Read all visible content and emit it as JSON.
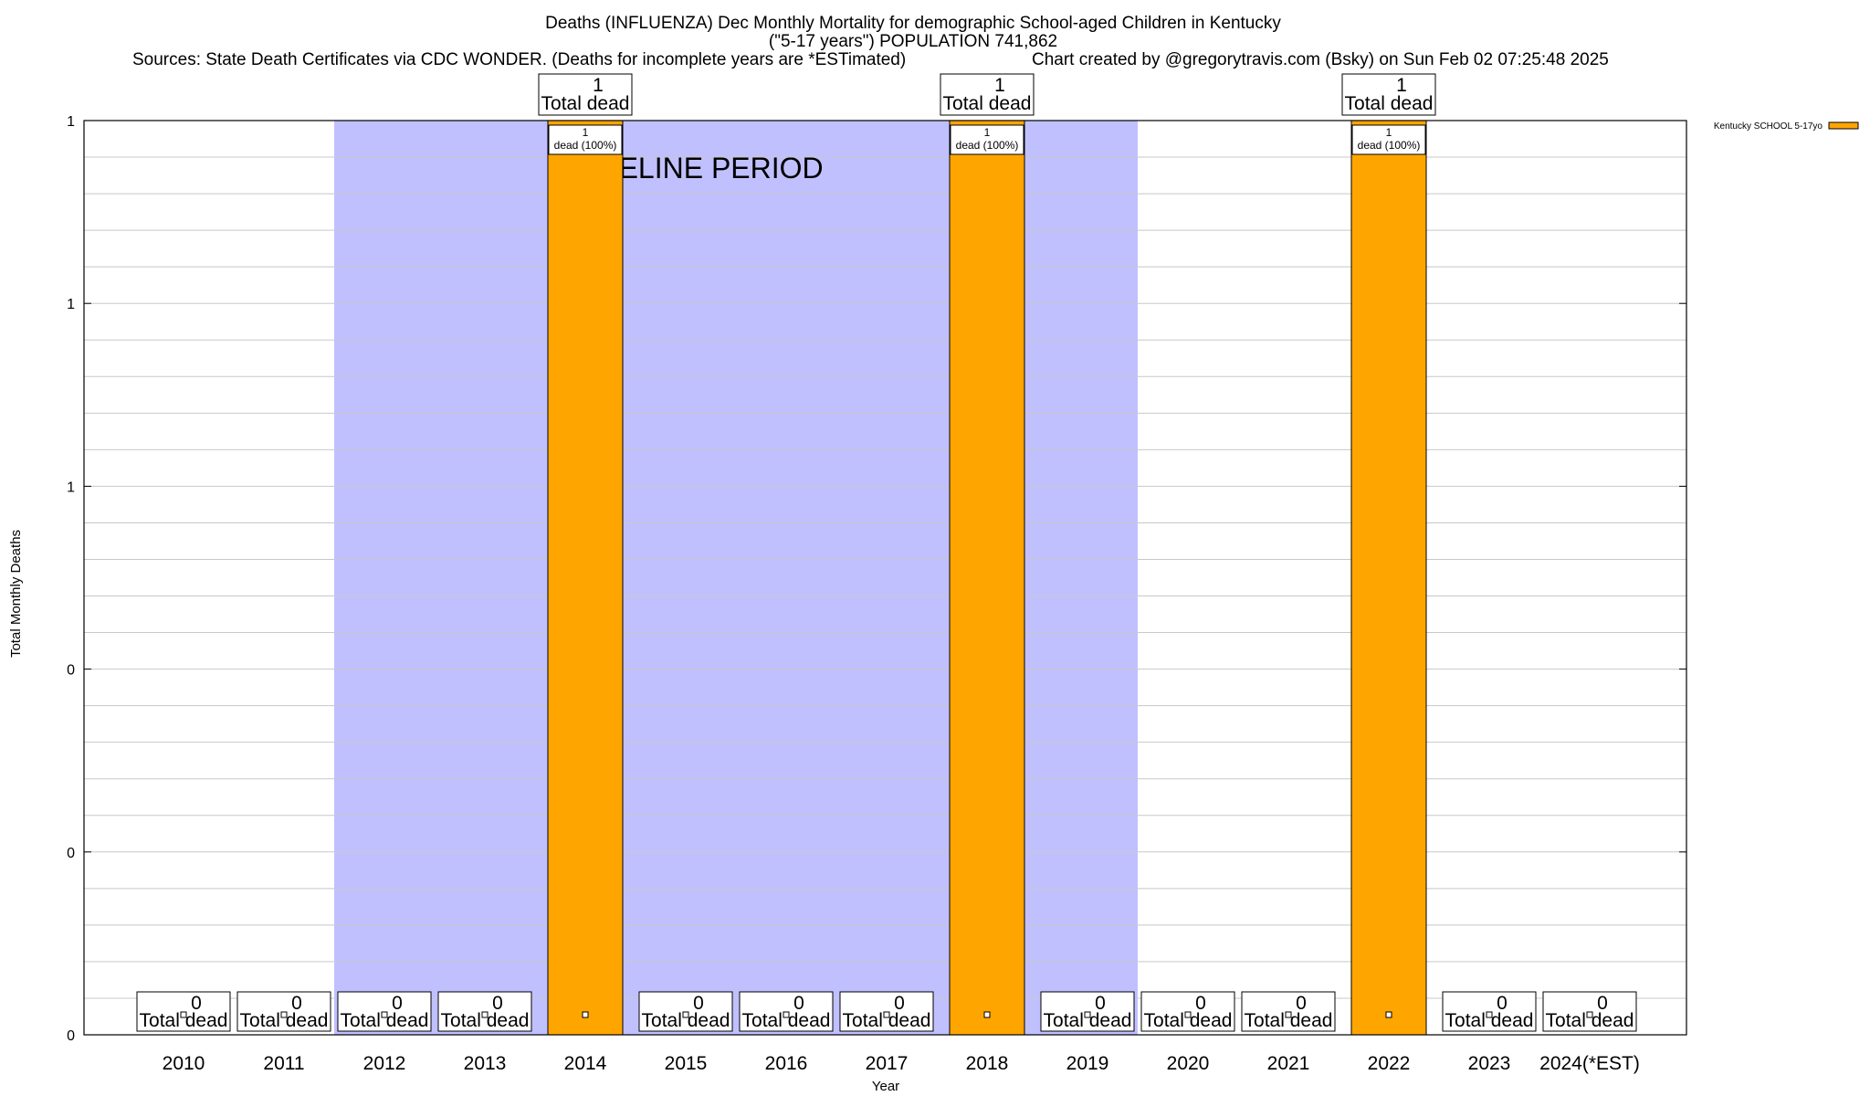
{
  "chart_data": {
    "type": "bar",
    "title_lines": [
      "Deaths (INFLUENZA) Dec Monthly Mortality for demographic School-aged Children in Kentucky",
      "(\"5-17 years\") POPULATION 741,862"
    ],
    "sources": "Sources: State Death Certificates via CDC WONDER. (Deaths for incomplete years are *ESTimated)",
    "credit": "Chart created by @gregorytravis.com (Bsky) on Sun Feb 02 07:25:48 2025",
    "xlabel": "Year",
    "ylabel": "Total Monthly Deaths",
    "ylim": [
      0,
      1
    ],
    "y_ticks": [
      {
        "value": 0,
        "label": "0"
      },
      {
        "value": 0.2,
        "label": "0"
      },
      {
        "value": 0.4,
        "label": "0"
      },
      {
        "value": 0.6,
        "label": "1"
      },
      {
        "value": 0.8,
        "label": "1"
      },
      {
        "value": 1.0,
        "label": "1"
      }
    ],
    "categories": [
      "2010",
      "2011",
      "2012",
      "2013",
      "2014",
      "2015",
      "2016",
      "2017",
      "2018",
      "2019",
      "2020",
      "2021",
      "2022",
      "2023",
      "2024(*EST)"
    ],
    "series": [
      {
        "name": "Kentucky SCHOOL 5-17yo",
        "color": "#ffa500",
        "values": [
          0,
          0,
          0,
          0,
          1,
          0,
          0,
          0,
          1,
          0,
          0,
          0,
          1,
          0,
          0
        ]
      }
    ],
    "total_label_text": "Total dead",
    "bar_label_text": "dead (100%)",
    "bar_label_values": [
      "1",
      "1",
      "1"
    ],
    "baseline": {
      "label": "BASELINE PERIOD",
      "from_category": "2012",
      "to_category": "2019",
      "color": "#c0c0ff"
    },
    "legend": {
      "entries": [
        "Kentucky SCHOOL 5-17yo"
      ],
      "position": "top-right"
    }
  }
}
